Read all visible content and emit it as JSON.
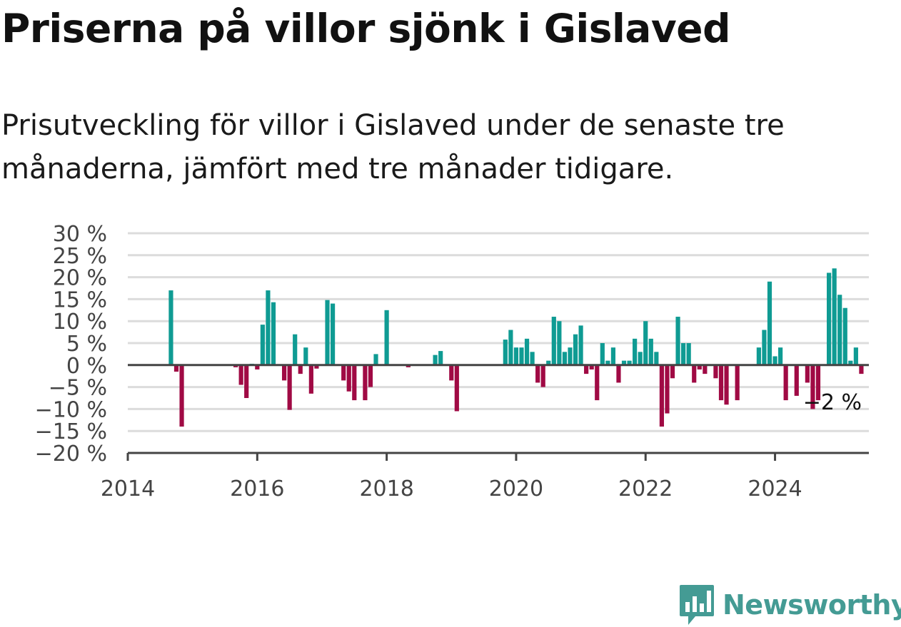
{
  "title": "Priserna på villor sjönk i Gislaved",
  "subtitle": "Prisutveckling för villor i Gislaved under de senaste tre månaderna, jämfört med tre månader tidigare.",
  "brand": "Newsworthy",
  "colors": {
    "positive": "#0f9b93",
    "negative": "#a00a44",
    "brand": "#449b94",
    "grid": "#dcdcdc",
    "axis": "#444444"
  },
  "chart_data": {
    "type": "bar",
    "title": "Priserna på villor sjönk i Gislaved",
    "xlabel": "",
    "ylabel": "",
    "ylim": [
      -20,
      30
    ],
    "xlim": [
      2014,
      2025.45
    ],
    "x_ticks": [
      "2014",
      "2016",
      "2018",
      "2020",
      "2022",
      "2024"
    ],
    "y_ticks": [
      "30 %",
      "25 %",
      "20 %",
      "15 %",
      "10 %",
      "5 %",
      "0 %",
      "−5 %",
      "−10 %",
      "−15 %",
      "−20 %"
    ],
    "grid": true,
    "end_label": "−2 %",
    "series": [
      {
        "start": "2014-01",
        "frequency": "monthly",
        "values": [
          0,
          0,
          0,
          0,
          0,
          0,
          0,
          0,
          17,
          -1.5,
          -14,
          0,
          0,
          0,
          0,
          0,
          0,
          0,
          0,
          0,
          -0.5,
          -4.5,
          -7.5,
          0.3,
          -1,
          9.2,
          17,
          14.3,
          0,
          -3.5,
          -10.2,
          7,
          -2,
          4,
          -6.5,
          -0.8,
          0,
          14.8,
          14,
          0,
          -3.5,
          -6,
          -8,
          0,
          -8,
          -5,
          2.5,
          0,
          12.5,
          0,
          0,
          0,
          -0.5,
          0,
          0,
          0,
          0,
          2.3,
          3.2,
          0,
          -3.5,
          -10.5,
          0,
          0,
          0,
          0,
          0,
          0,
          0,
          0,
          5.8,
          8,
          4,
          4,
          6,
          3,
          -4,
          -5,
          1,
          11,
          10,
          3,
          4,
          7,
          9,
          -2,
          -1,
          -8,
          5,
          1,
          4,
          -4,
          1,
          1,
          6,
          3,
          10,
          6,
          3,
          -14,
          -11,
          -3,
          11,
          5,
          5,
          -4,
          -1,
          -2,
          0,
          -3,
          -8,
          -9,
          0,
          -8,
          0,
          0,
          0,
          4,
          8,
          19,
          2,
          4,
          -8,
          0,
          -7,
          0,
          -4,
          -10,
          -8,
          0,
          21,
          22,
          16,
          13,
          1,
          4,
          -2
        ]
      }
    ]
  }
}
